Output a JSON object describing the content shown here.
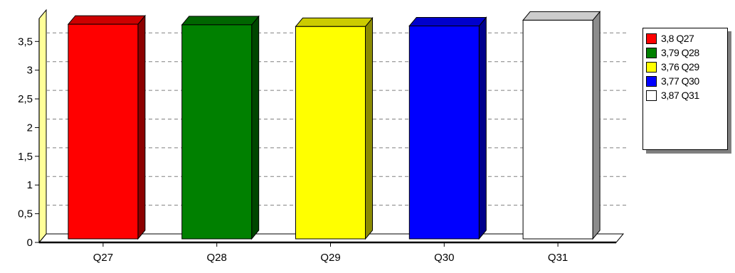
{
  "chart_data": {
    "type": "bar",
    "title": "",
    "xlabel": "",
    "ylabel": "",
    "categories": [
      "Q27",
      "Q28",
      "Q29",
      "Q30",
      "Q31"
    ],
    "values": [
      3.8,
      3.79,
      3.76,
      3.77,
      3.87
    ],
    "colors": [
      "#ff0000",
      "#008000",
      "#ffff00",
      "#0000ff",
      "#ffffff"
    ],
    "ylim": [
      0,
      3.9
    ],
    "yticks": [
      0,
      0.5,
      1,
      1.5,
      2,
      2.5,
      3,
      3.5
    ],
    "ytick_labels": [
      "0",
      "0,5",
      "1",
      "1,5",
      "2",
      "2,5",
      "3",
      "3,5"
    ],
    "grid": true,
    "legend_position": "right",
    "legend": [
      {
        "label": "3,8 Q27",
        "color": "#ff0000"
      },
      {
        "label": "3,79 Q28",
        "color": "#008000"
      },
      {
        "label": "3,76 Q29",
        "color": "#ffff00"
      },
      {
        "label": "3,77 Q30",
        "color": "#0000ff"
      },
      {
        "label": "3,87 Q31",
        "color": "#ffffff"
      }
    ]
  },
  "style": {
    "wall_color": "#ffff99",
    "gridline_color": "#808080",
    "axis_color": "#000000"
  }
}
